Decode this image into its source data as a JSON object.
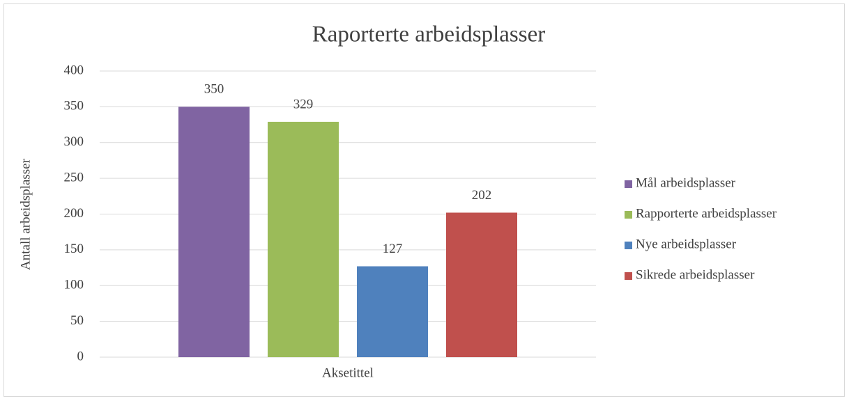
{
  "chart_data": {
    "type": "bar",
    "title": "Raporterte arbeidsplasser",
    "ylabel": "Antall arbeidsplasser",
    "categories": [
      "Aksetittel"
    ],
    "series": [
      {
        "name": "Mål arbeidsplasser",
        "color": "#8064a2",
        "values": [
          350
        ]
      },
      {
        "name": "Rapporterte arbeidsplasser",
        "color": "#9bbb59",
        "values": [
          329
        ]
      },
      {
        "name": "Nye arbeidsplasser",
        "color": "#4f81bd",
        "values": [
          127
        ]
      },
      {
        "name": "Sikrede arbeidsplasser",
        "color": "#c0504d",
        "values": [
          202
        ]
      }
    ],
    "ylim": [
      0,
      400
    ],
    "yticks": [
      0,
      50,
      100,
      150,
      200,
      250,
      300,
      350,
      400
    ],
    "grid": true,
    "legend": "right"
  }
}
